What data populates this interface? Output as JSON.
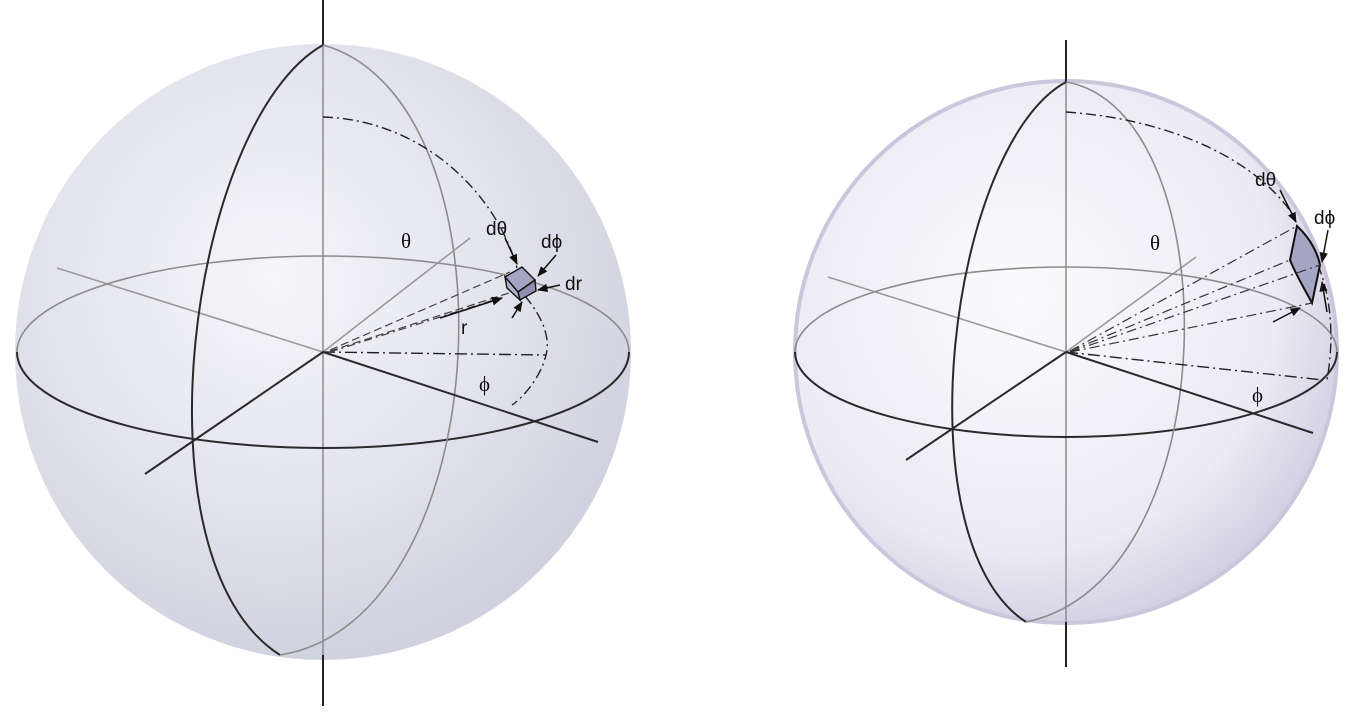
{
  "left_diagram": {
    "labels": {
      "theta": "θ",
      "d_theta": "dθ",
      "d_phi": "dϕ",
      "dr": "dr",
      "r": "r",
      "phi": "ϕ"
    }
  },
  "right_diagram": {
    "labels": {
      "theta": "θ",
      "d_theta": "dθ",
      "d_phi": "dϕ",
      "phi": "ϕ"
    }
  },
  "colors": {
    "sphere_fill": "#dfe0ea",
    "sphere_fill_right": "#e9eaf1",
    "sphere_rim_right": "#c9c7dc",
    "solid_line": "#2a2a2a",
    "gray_line": "#8c8c8c",
    "volume_element": "#a3a5c3"
  }
}
